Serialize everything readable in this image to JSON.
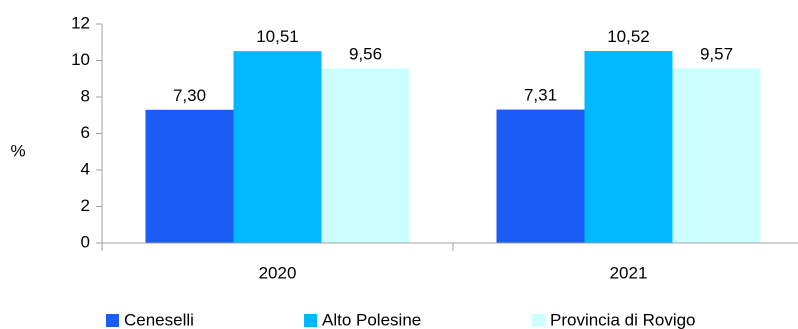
{
  "chart_data": {
    "type": "bar",
    "title": "",
    "xlabel": "",
    "ylabel": "%",
    "categories": [
      "2020",
      "2021"
    ],
    "series": [
      {
        "name": "Ceneselli",
        "values": [
          7.3,
          7.31
        ],
        "labels": [
          "7,30",
          "7,31"
        ],
        "color": "#1a5cf5"
      },
      {
        "name": "Alto Polesine",
        "values": [
          10.51,
          10.52
        ],
        "labels": [
          "10,51",
          "10,52"
        ],
        "color": "#00b8ff"
      },
      {
        "name": "Provincia di Rovigo",
        "values": [
          9.56,
          9.57
        ],
        "labels": [
          "9,56",
          "9,57"
        ],
        "color": "#ccffff"
      }
    ],
    "ylim": [
      0,
      12
    ],
    "yticks": [
      "0",
      "2",
      "4",
      "6",
      "8",
      "10",
      "12"
    ],
    "grid": false,
    "legend": "bottom"
  }
}
